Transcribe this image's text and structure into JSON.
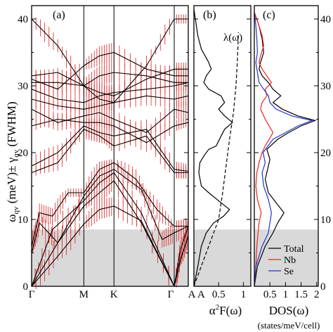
{
  "colors": {
    "band": "#000000",
    "error_bar": "#dd2222",
    "shade": "#d9d9d9",
    "nb": "#ee2222",
    "se": "#2233cc",
    "total": "#000000"
  },
  "chart_data": [
    {
      "type": "line",
      "panel": "(a)",
      "ylabel": "ω_qv (meV) ± γ_qv (FWHM)",
      "ylabel_parts": {
        "omega": "ω",
        "sub": "qv",
        "mid": " (meV)± γ",
        "sub2": "qv",
        "tail": " (FWHM)"
      },
      "ylim": [
        0,
        42
      ],
      "yticks": [
        "0",
        "10",
        "20",
        "30",
        "40"
      ],
      "xticks": [
        "Γ",
        "M",
        "K",
        "Γ",
        "A"
      ],
      "xpos": [
        0,
        1,
        1.577,
        2.731,
        3.0
      ],
      "shaded_region": [
        0,
        8.5
      ],
      "series": [
        {
          "x": [
            0,
            0.5,
            1,
            1.3,
            1.577,
            2.1,
            2.731,
            2.85,
            3.0
          ],
          "y": [
            0,
            4.5,
            9.3,
            11.5,
            12.0,
            9.8,
            0,
            4.0,
            7.5
          ]
        },
        {
          "x": [
            0,
            0.5,
            1,
            1.3,
            1.577,
            2.1,
            2.731,
            2.85,
            3.0
          ],
          "y": [
            0,
            6.5,
            12.0,
            14.0,
            15.8,
            9.5,
            0,
            4.0,
            7.5
          ]
        },
        {
          "x": [
            0,
            0.4,
            1,
            1.3,
            1.577,
            2.1,
            2.731,
            2.85,
            3.0
          ],
          "y": [
            0,
            8.5,
            12.8,
            15.5,
            17.0,
            11.0,
            0,
            5.5,
            9.0
          ]
        },
        {
          "x": [
            0,
            0.15,
            0.5,
            1,
            1.3,
            1.577,
            2.1,
            2.5,
            2.731,
            3.0
          ],
          "y": [
            5.0,
            9.5,
            6.5,
            13.5,
            16.5,
            17.5,
            14.5,
            7.0,
            8.0,
            9.0
          ]
        },
        {
          "x": [
            0,
            0.15,
            0.4,
            0.7,
            1,
            1.3,
            1.577,
            2.0,
            2.4,
            2.731,
            3.0
          ],
          "y": [
            6.0,
            11.0,
            10.5,
            14.0,
            14.0,
            17.5,
            18.5,
            16.0,
            11.5,
            9.0,
            9.0
          ]
        },
        {
          "x": [
            0,
            0.5,
            1,
            1.3,
            1.577,
            2.2,
            2.731,
            3.0
          ],
          "y": [
            17.0,
            18.5,
            23.5,
            22.5,
            21.0,
            22.5,
            17.0,
            17.0
          ]
        },
        {
          "x": [
            0,
            0.5,
            1,
            1.3,
            1.577,
            2.2,
            2.731,
            3.0
          ],
          "y": [
            18.0,
            20.0,
            24.0,
            23.0,
            22.5,
            23.5,
            17.5,
            17.2
          ]
        },
        {
          "x": [
            0,
            0.5,
            1,
            1.3,
            1.577,
            2.2,
            2.731,
            3.0
          ],
          "y": [
            24.0,
            25.0,
            24.5,
            24.5,
            24.0,
            21.5,
            24.0,
            24.5
          ]
        },
        {
          "x": [
            0,
            0.5,
            1,
            1.3,
            1.577,
            2.2,
            2.731,
            3.0
          ],
          "y": [
            26.5,
            24.5,
            25.5,
            26.0,
            25.0,
            23.0,
            26.5,
            26.0
          ]
        },
        {
          "x": [
            0,
            0.5,
            1,
            1.3,
            1.577,
            2.2,
            2.731,
            3.0
          ],
          "y": [
            28.0,
            27.0,
            26.5,
            27.0,
            27.5,
            28.5,
            28.0,
            28.5
          ]
        },
        {
          "x": [
            0,
            0.5,
            1,
            1.3,
            1.577,
            2.2,
            2.731,
            3.0
          ],
          "y": [
            29.5,
            28.0,
            27.5,
            28.5,
            29.0,
            29.5,
            30.0,
            30.5
          ]
        },
        {
          "x": [
            0,
            0.5,
            1,
            1.3,
            1.577,
            2.2,
            2.731,
            3.0
          ],
          "y": [
            30.5,
            30.5,
            30.0,
            31.5,
            32.0,
            31.5,
            30.5,
            30.5
          ]
        },
        {
          "x": [
            0,
            0.5,
            1,
            1.3,
            1.577,
            2.2,
            2.731,
            3.0
          ],
          "y": [
            31.0,
            29.5,
            33.0,
            34.5,
            35.0,
            32.5,
            31.5,
            31.5
          ]
        },
        {
          "x": [
            0,
            0.5,
            1,
            1.3,
            1.577,
            2.2,
            2.731,
            3.0
          ],
          "y": [
            31.5,
            32.0,
            30.0,
            29.0,
            28.5,
            31.0,
            32.5,
            32.5
          ]
        },
        {
          "x": [
            0,
            0.5,
            1,
            1.3,
            1.577,
            2.2,
            2.731,
            3.0
          ],
          "y": [
            40.0,
            36.0,
            30.0,
            28.0,
            27.5,
            33.0,
            40.0,
            40.0
          ]
        }
      ]
    },
    {
      "type": "line",
      "panel": "(b)",
      "xlabel": "α²F(ω)",
      "xlabel_parts": {
        "alpha": "α",
        "sup": "2",
        "tail": "F(ω)"
      },
      "xlim": [
        0,
        1.15
      ],
      "xticks": [
        "A",
        "0.5",
        "1"
      ],
      "xtick_values": [
        0.08,
        0.5,
        1.0
      ],
      "annotation": "λ(ω)",
      "ylim": [
        0,
        42
      ],
      "series": [
        {
          "name": "α²F(ω)",
          "style": "solid",
          "x": [
            0,
            0.08,
            0.15,
            0.25,
            0.4,
            0.6,
            0.72,
            0.55,
            0.3,
            0.15,
            0.1,
            0.12,
            0.2,
            0.3,
            0.45,
            0.55,
            0.62,
            0.78,
            0.62,
            0.5,
            0.62,
            0.55,
            0.3,
            0.2,
            0.25,
            0.35,
            0.3,
            0.15,
            0.08,
            0.05,
            0.02,
            0
          ],
          "y": [
            0,
            3,
            6,
            8,
            9.5,
            10.5,
            11.5,
            12.5,
            14,
            15,
            17,
            18.5,
            19.5,
            20.5,
            21,
            22.5,
            23.5,
            24.5,
            25.5,
            26.5,
            27.5,
            28.5,
            29.5,
            30.5,
            31.5,
            32.5,
            33.5,
            35.5,
            37.5,
            39,
            40.5,
            41.5
          ]
        },
        {
          "name": "λ(ω)",
          "style": "dashed",
          "x": [
            0,
            0.1,
            0.3,
            0.5,
            0.58,
            0.65,
            0.72,
            0.8,
            0.85,
            0.88,
            0.9
          ],
          "y": [
            0,
            2,
            6,
            10,
            14,
            18,
            22,
            26,
            30,
            34,
            38
          ]
        }
      ]
    },
    {
      "type": "line",
      "panel": "(c)",
      "xlabel": "DOS(ω)",
      "xlabel_unit": "(states/meV/cell)",
      "xlim": [
        0,
        2.05
      ],
      "xticks": [
        "0.5",
        "1",
        "1.5",
        "2"
      ],
      "xtick_values": [
        0.5,
        1.0,
        1.5,
        2.0
      ],
      "ylim": [
        0,
        42
      ],
      "yticks": [
        "0",
        "10",
        "20",
        "30",
        "40"
      ],
      "legend": [
        "Total",
        "Nb",
        "Se"
      ],
      "legend_position": "bottom-right",
      "series": [
        {
          "name": "Total",
          "color": "#000000",
          "x": [
            0,
            0.1,
            0.35,
            0.6,
            0.75,
            0.95,
            0.7,
            0.45,
            0.35,
            0.45,
            0.5,
            0.4,
            0.75,
            1.1,
            1.5,
            1.95,
            1.4,
            0.9,
            0.6,
            0.85,
            0.6,
            0.45,
            0.25,
            0.15,
            0.2,
            0.3,
            0.25,
            0.15,
            0
          ],
          "y": [
            0,
            3,
            6,
            8,
            9.5,
            11,
            12.5,
            14,
            16,
            18,
            19,
            20.5,
            22,
            23,
            24,
            24.8,
            25.5,
            26.5,
            27.5,
            28.5,
            29.5,
            30.5,
            31.5,
            32.5,
            33.5,
            35,
            37,
            39,
            41
          ]
        },
        {
          "name": "Nb",
          "color": "#ee2222",
          "x": [
            0,
            0.05,
            0.08,
            0.12,
            0.15,
            0.22,
            0.1,
            0.05,
            0.08,
            0.15,
            0.25,
            0.35,
            0.6,
            0.35,
            0.2,
            0.25,
            0.4,
            0.35,
            0.55,
            0.4,
            0.25,
            0.15,
            0.2,
            0.3,
            0.25,
            0.15,
            0
          ],
          "y": [
            0,
            3,
            6,
            8,
            9.5,
            11,
            13,
            15,
            17,
            18.5,
            20,
            21,
            23,
            25,
            26.5,
            27.5,
            28.5,
            29.5,
            30.5,
            31.5,
            32.5,
            33.5,
            34.5,
            36,
            37.5,
            39,
            41
          ]
        },
        {
          "name": "Se",
          "color": "#2233cc",
          "x": [
            0,
            0.05,
            0.25,
            0.45,
            0.5,
            0.55,
            0.45,
            0.3,
            0.25,
            0.35,
            0.28,
            0.6,
            1.0,
            1.4,
            1.85,
            1.2,
            0.7,
            0.5,
            0.45,
            0.3,
            0.15,
            0.1,
            0.05,
            0.1,
            0.08,
            0.05,
            0
          ],
          "y": [
            0,
            3,
            6,
            8,
            9.5,
            11,
            13,
            15,
            17,
            18.5,
            20,
            22,
            23,
            24,
            24.8,
            25.5,
            26.5,
            27.5,
            28.5,
            29.5,
            30.5,
            32,
            33.5,
            35,
            37,
            39,
            41
          ]
        }
      ]
    }
  ]
}
